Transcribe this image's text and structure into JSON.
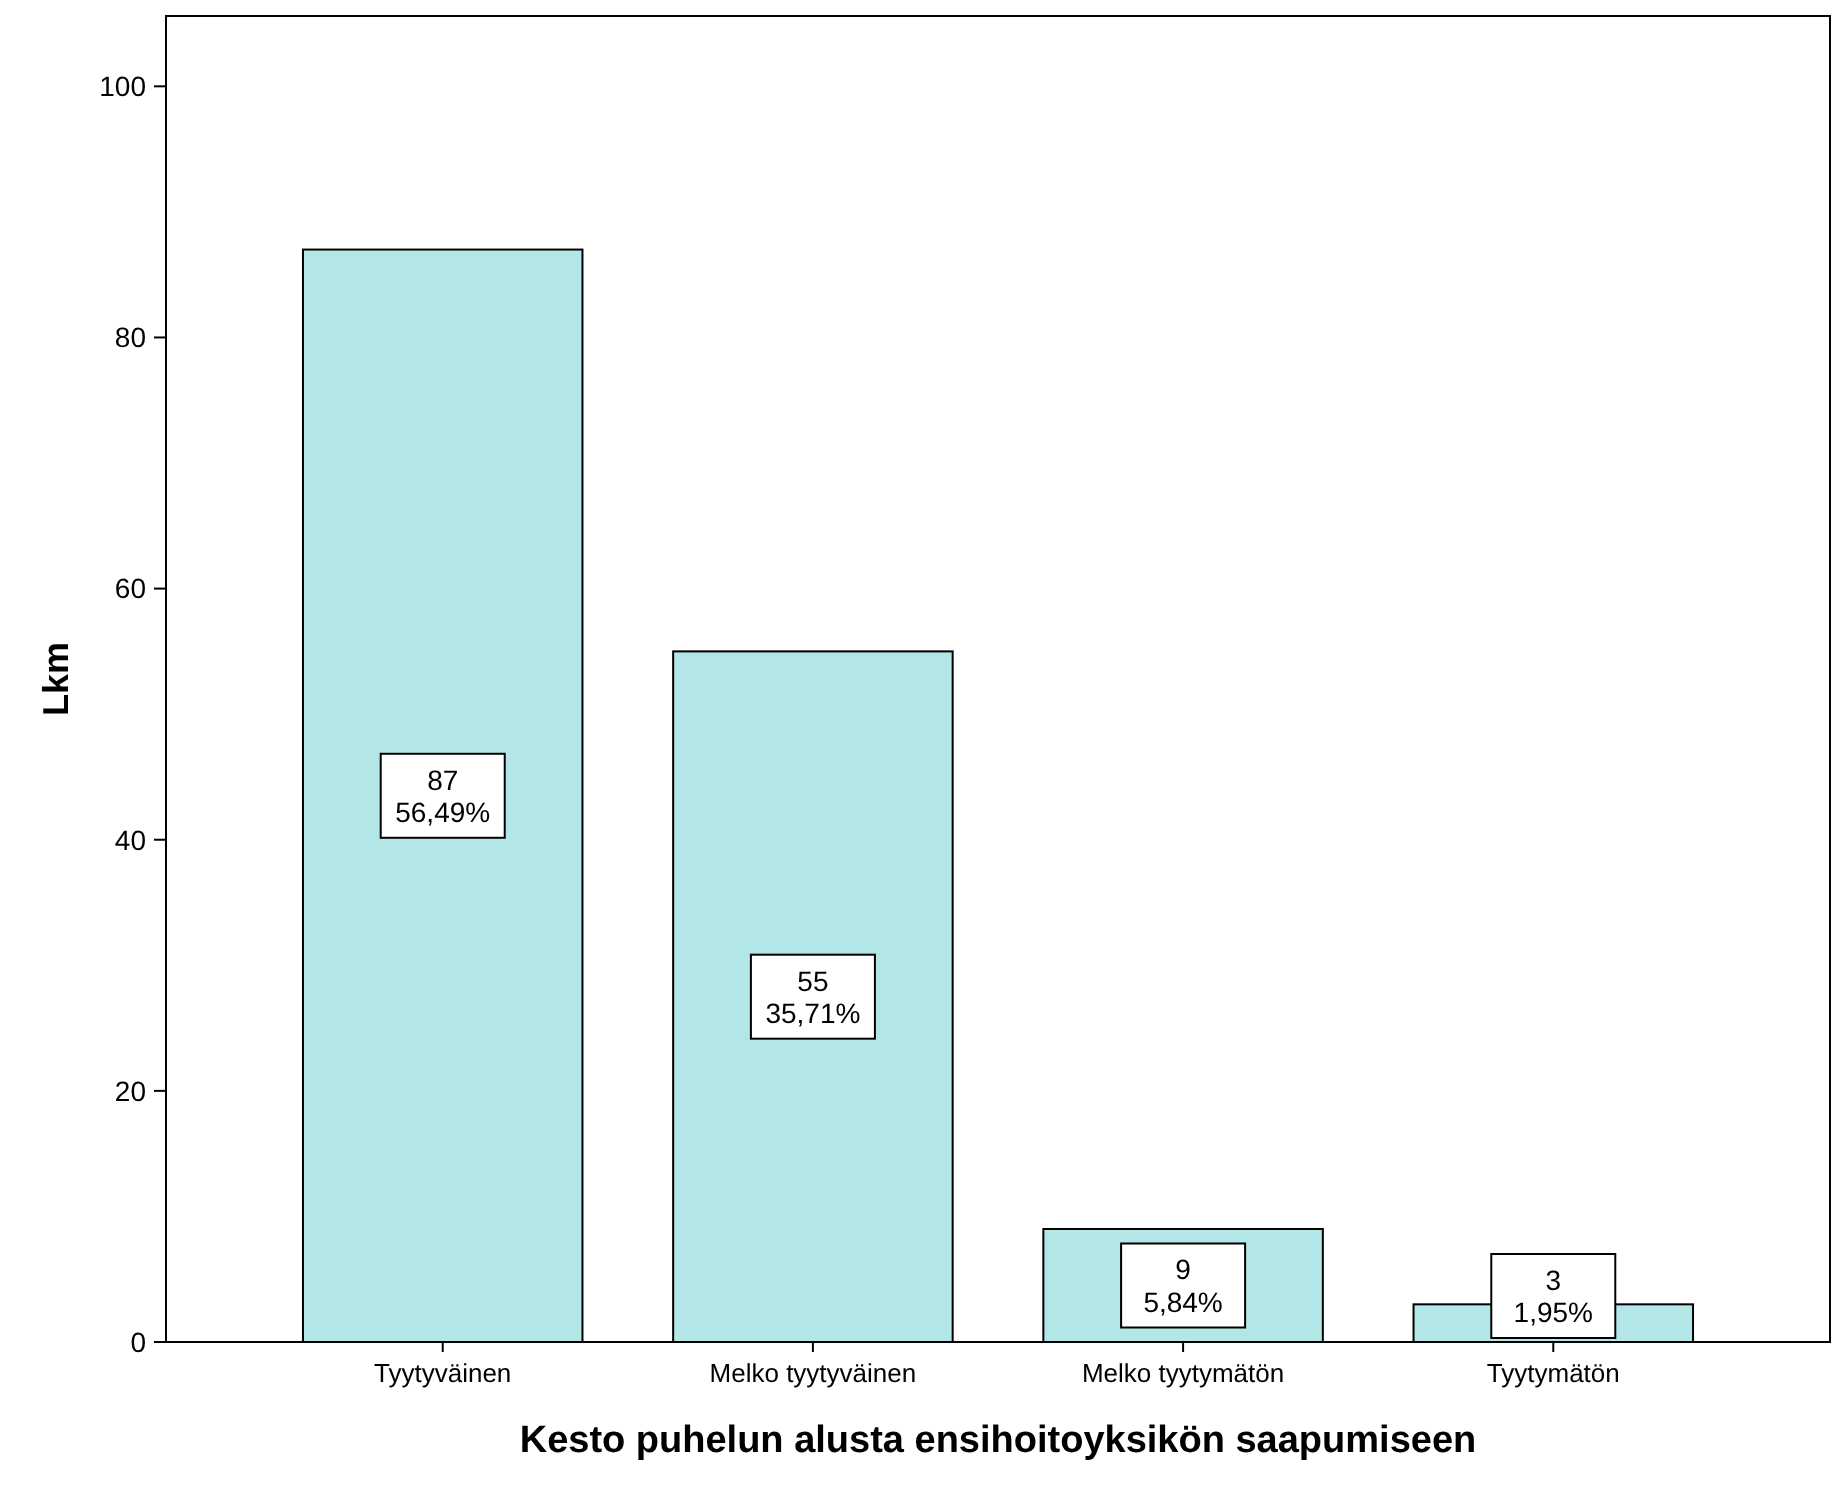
{
  "chart_data": {
    "type": "bar",
    "xlabel": "Kesto puhelun alusta ensihoitoyksikön saapumiseen",
    "ylabel": "Lkm",
    "categories": [
      "Tyytyväinen",
      "Melko tyytyväinen",
      "Melko tyytymätön",
      "Tyytymätön"
    ],
    "values": [
      87,
      55,
      9,
      3
    ],
    "value_labels": [
      "87\n56,49%",
      "55\n35,71%",
      "9\n5,84%",
      "3\n1,95%"
    ],
    "color": "#b3e6e6",
    "ylim": [
      0,
      105.6
    ],
    "yticks": [
      0,
      20,
      40,
      60,
      80,
      100
    ],
    "grid": false
  }
}
